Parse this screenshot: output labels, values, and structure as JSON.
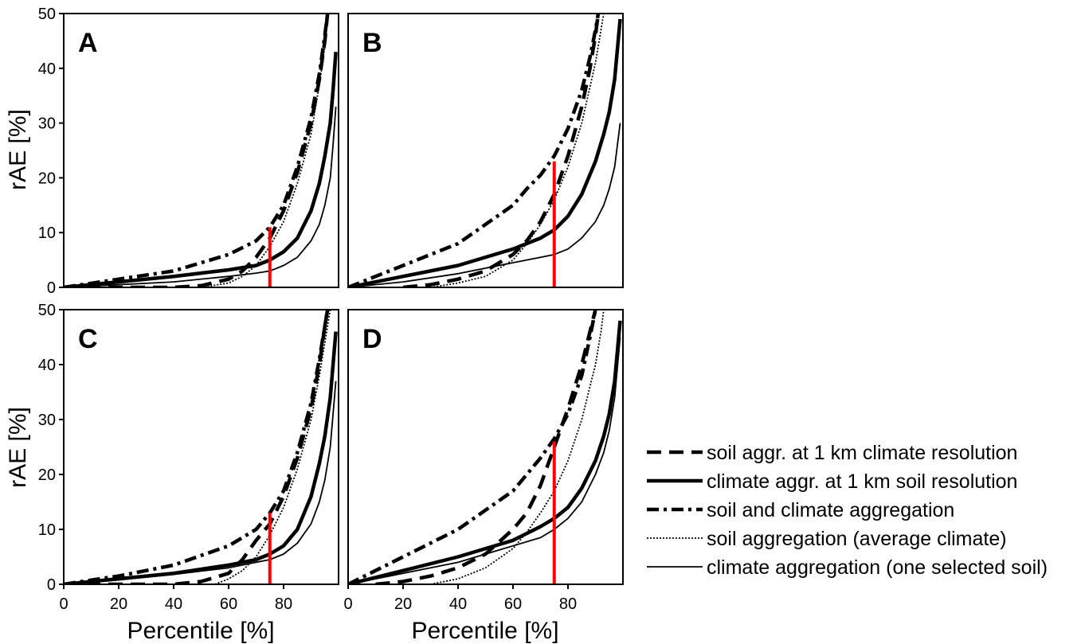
{
  "chart_data": {
    "type": "line",
    "x_ticks": [
      "0",
      "20",
      "40",
      "60",
      "80"
    ],
    "y_ticks": [
      "0",
      "10",
      "20",
      "30",
      "40",
      "50"
    ],
    "xlim": [
      0,
      100
    ],
    "ylim": [
      0,
      50
    ],
    "xlabel": "Percentile [%]",
    "ylabel": "rAE [%]",
    "grid": false,
    "legend_position": "right",
    "colors": {
      "axis": "#000000",
      "series": "#000000",
      "marker": "#ff0000"
    },
    "legend": [
      {
        "label": "soil aggr. at 1 km climate resolution",
        "style": "dashed"
      },
      {
        "label": "climate aggr. at 1 km soil resolution",
        "style": "solid-thick"
      },
      {
        "label": "soil and climate aggregation",
        "style": "dashdot"
      },
      {
        "label": "soil aggregation (average climate)",
        "style": "dotted"
      },
      {
        "label": "climate aggregation (one selected soil)",
        "style": "solid-thin"
      }
    ],
    "panels": [
      {
        "label": "A",
        "marker_x": 75,
        "marker_y": 11,
        "series": [
          {
            "style": "dashed",
            "x": [
              0,
              20,
              40,
              50,
              60,
              65,
              70,
              75,
              80,
              85,
              90,
              93,
              95,
              96
            ],
            "y": [
              0,
              0,
              0,
              0.3,
              1.5,
              3,
              5.5,
              9,
              14,
              21,
              30,
              38,
              45,
              50
            ]
          },
          {
            "style": "solid-thick",
            "x": [
              0,
              20,
              40,
              60,
              70,
              75,
              80,
              85,
              90,
              93,
              95,
              97,
              98,
              99
            ],
            "y": [
              0,
              1,
              2,
              3.2,
              4,
              5,
              6.5,
              9,
              14,
              19,
              24,
              30,
              36,
              43
            ]
          },
          {
            "style": "dashdot",
            "x": [
              0,
              20,
              40,
              60,
              70,
              75,
              80,
              85,
              90,
              93,
              95,
              96
            ],
            "y": [
              0,
              1.5,
              3,
              6,
              8.5,
              11,
              15,
              22,
              31,
              39,
              46,
              50
            ]
          },
          {
            "style": "dotted",
            "x": [
              50,
              60,
              65,
              70,
              75,
              80,
              85,
              90,
              93,
              95,
              96
            ],
            "y": [
              0,
              0.8,
              2,
              4,
              7.5,
              12,
              19,
              28,
              37,
              44,
              50
            ]
          },
          {
            "style": "solid-thin",
            "x": [
              0,
              20,
              40,
              60,
              70,
              75,
              80,
              85,
              90,
              93,
              95,
              97,
              98,
              99
            ],
            "y": [
              0,
              0.5,
              1,
              2,
              2.6,
              3,
              4,
              5.5,
              8.5,
              11.5,
              15,
              20,
              26,
              33
            ]
          }
        ]
      },
      {
        "label": "B",
        "marker_x": 75,
        "marker_y": 23,
        "series": [
          {
            "style": "dashed",
            "x": [
              20,
              30,
              40,
              50,
              60,
              65,
              70,
              75,
              80,
              85,
              88,
              90,
              91
            ],
            "y": [
              0,
              0.5,
              1.5,
              3,
              6,
              8.5,
              12,
              17,
              24,
              33,
              40,
              46,
              50
            ]
          },
          {
            "style": "solid-thick",
            "x": [
              0,
              20,
              40,
              60,
              70,
              75,
              80,
              85,
              90,
              93,
              95,
              97,
              99
            ],
            "y": [
              0,
              2,
              4,
              7,
              9,
              10.5,
              13,
              17,
              23,
              28,
              32,
              38,
              49
            ]
          },
          {
            "style": "dashdot",
            "x": [
              0,
              20,
              40,
              60,
              65,
              70,
              75,
              80,
              85,
              88,
              90,
              91
            ],
            "y": [
              0,
              4,
              8,
              15,
              18,
              20.5,
              24,
              29,
              36,
              42,
              47,
              50
            ]
          },
          {
            "style": "dotted",
            "x": [
              30,
              40,
              50,
              60,
              65,
              70,
              75,
              80,
              85,
              90,
              92,
              93
            ],
            "y": [
              0,
              0.8,
              2,
              5,
              8,
              11.5,
              16,
              22,
              30,
              41,
              47,
              50
            ]
          },
          {
            "style": "solid-thin",
            "x": [
              0,
              20,
              40,
              60,
              70,
              75,
              80,
              85,
              90,
              93,
              95,
              97,
              99
            ],
            "y": [
              0,
              1,
              2.5,
              4.5,
              5.5,
              6,
              7,
              9,
              12,
              15,
              18,
              22,
              30
            ]
          }
        ]
      },
      {
        "label": "C",
        "marker_x": 75,
        "marker_y": 13,
        "series": [
          {
            "style": "dashed",
            "x": [
              0,
              20,
              40,
              50,
              60,
              65,
              70,
              75,
              80,
              85,
              90,
              93,
              95,
              96
            ],
            "y": [
              0,
              0,
              0,
              0.5,
              2,
              4.5,
              8,
              11,
              16,
              23,
              32,
              40,
              47,
              50
            ]
          },
          {
            "style": "solid-thick",
            "x": [
              0,
              20,
              40,
              60,
              70,
              75,
              80,
              85,
              90,
              93,
              95,
              97,
              98,
              99
            ],
            "y": [
              0,
              1,
              2,
              3.5,
              4.5,
              5.5,
              7,
              10,
              16,
              22,
              27,
              34,
              40,
              46
            ]
          },
          {
            "style": "dashdot",
            "x": [
              0,
              20,
              40,
              60,
              70,
              75,
              80,
              85,
              90,
              93,
              95,
              96
            ],
            "y": [
              0,
              1.5,
              3.5,
              7,
              10,
              13,
              17,
              24,
              33,
              41,
              47,
              50
            ]
          },
          {
            "style": "dotted",
            "x": [
              55,
              60,
              65,
              70,
              75,
              80,
              85,
              90,
              93,
              95,
              97
            ],
            "y": [
              0,
              1,
              2.5,
              5,
              9,
              14,
              21,
              30,
              38,
              44,
              50
            ]
          },
          {
            "style": "solid-thin",
            "x": [
              0,
              20,
              40,
              60,
              70,
              75,
              80,
              85,
              90,
              93,
              95,
              97,
              98,
              99
            ],
            "y": [
              0,
              0.8,
              1.8,
              3,
              4,
              4.5,
              5.5,
              7.5,
              11,
              15,
              19,
              25,
              31,
              37
            ]
          }
        ]
      },
      {
        "label": "D",
        "marker_x": 75,
        "marker_y": 26,
        "series": [
          {
            "style": "dashed",
            "x": [
              10,
              20,
              30,
              40,
              50,
              60,
              65,
              70,
              75,
              80,
              85,
              88,
              90
            ],
            "y": [
              0,
              0.5,
              1.5,
              3,
              5.5,
              10,
              13,
              18,
              25,
              32,
              40,
              46,
              50
            ]
          },
          {
            "style": "solid-thick",
            "x": [
              0,
              20,
              40,
              60,
              70,
              75,
              80,
              85,
              90,
              93,
              95,
              97,
              99
            ],
            "y": [
              0,
              2.5,
              5,
              8,
              10.5,
              12,
              14,
              17.5,
              22.5,
              27,
              31,
              37,
              48
            ]
          },
          {
            "style": "dashdot",
            "x": [
              0,
              20,
              40,
              60,
              65,
              70,
              75,
              80,
              85,
              88,
              90
            ],
            "y": [
              0,
              5,
              10,
              17,
              20,
              23,
              26.5,
              31,
              38,
              45,
              50
            ]
          },
          {
            "style": "dotted",
            "x": [
              30,
              40,
              50,
              60,
              65,
              70,
              75,
              80,
              85,
              90,
              92,
              93
            ],
            "y": [
              0,
              1,
              3,
              6.5,
              9.5,
              13,
              17,
              22.5,
              30,
              40,
              46,
              50
            ]
          },
          {
            "style": "solid-thin",
            "x": [
              0,
              20,
              40,
              60,
              70,
              75,
              80,
              85,
              90,
              93,
              95,
              97,
              99
            ],
            "y": [
              0,
              2,
              4,
              7,
              8.5,
              10,
              12,
              15,
              20,
              24,
              28,
              34,
              45
            ]
          }
        ]
      }
    ]
  }
}
